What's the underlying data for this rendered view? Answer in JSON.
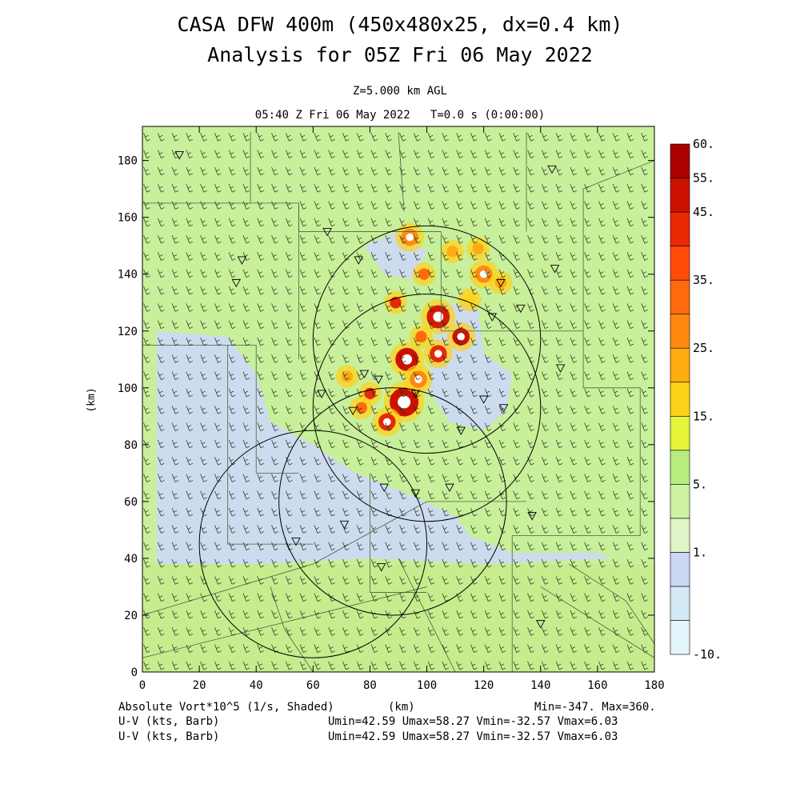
{
  "header": {
    "title_line1": "CASA DFW 400m (450x480x25, dx=0.4 km)",
    "title_line2": "Analysis for 05Z Fri 06 May 2022",
    "level_label": "Z=5.000 km AGL",
    "time_label": "05:40 Z Fri 06 May 2022   T=0.0 s (0:00:00)"
  },
  "footer": {
    "field_label": "Absolute Vort*10^5 (1/s, Shaded)",
    "xunit_label": "(km)",
    "minmax": "Min=-347. Max=360.",
    "barb_label_1": "U-V (kts, Barb)",
    "barb_stats_1": "Umin=42.59 Umax=58.27 Vmin=-32.57 Vmax=6.03",
    "barb_label_2": "U-V (kts, Barb)",
    "barb_stats_2": "Umin=42.59 Umax=58.27 Vmin=-32.57 Vmax=6.03"
  },
  "chart_data": {
    "type": "heatmap",
    "title": "CASA DFW 400m (450x480x25, dx=0.4 km) Analysis for 05Z Fri 06 May 2022",
    "xlabel": "(km)",
    "ylabel": "(km)",
    "xlim": [
      0,
      180
    ],
    "ylim": [
      0,
      192
    ],
    "x_ticks": [
      0,
      20,
      40,
      60,
      80,
      100,
      120,
      140,
      160,
      180
    ],
    "y_ticks": [
      0,
      20,
      40,
      60,
      80,
      100,
      120,
      140,
      160,
      180
    ],
    "field": "Absolute Vort*10^5 (1/s, Shaded)",
    "field_min": -347,
    "field_max": 360,
    "colorbar": {
      "levels": [
        -10,
        -5,
        1,
        3,
        5,
        10,
        15,
        20,
        25,
        30,
        35,
        40,
        45,
        50,
        55,
        60
      ],
      "labels": [
        "-10.",
        "1.",
        "5.",
        "15.",
        "25.",
        "35.",
        "45.",
        "55.",
        "60."
      ],
      "colors": [
        "#e4f4fb",
        "#d3e9f6",
        "#cbd8f4",
        "#dff5c8",
        "#cdf2a4",
        "#b8ec7e",
        "#e6f43a",
        "#ffd21a",
        "#ffab12",
        "#ff8810",
        "#ff6a0c",
        "#ff4a08",
        "#e82a04",
        "#cc1100",
        "#aa0000"
      ]
    },
    "wind_barbs": {
      "u_range": [
        42.59,
        58.27
      ],
      "v_range": [
        -32.57,
        6.03
      ],
      "units": "kts"
    },
    "radar_range_rings_km": [
      {
        "center": [
          100,
          117
        ],
        "radius": 40
      },
      {
        "center": [
          100,
          93
        ],
        "radius": 40
      },
      {
        "center": [
          88,
          60
        ],
        "radius": 40
      },
      {
        "center": [
          60,
          45
        ],
        "radius": 40
      }
    ]
  }
}
